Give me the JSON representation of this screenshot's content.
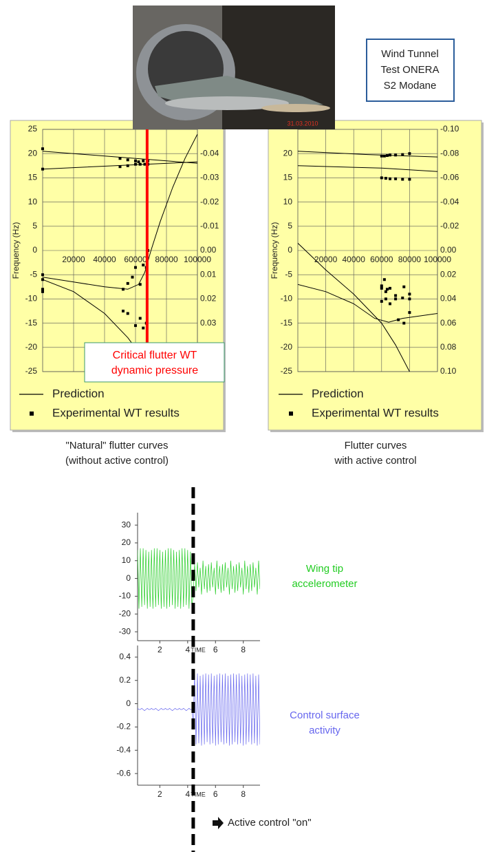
{
  "notes": {
    "box": [
      "Wind Tunnel",
      "Test ONERA",
      "S2 Modane"
    ],
    "photo_date": "31.03.2010",
    "active_control": {
      "x": 4.4,
      "label": "Active control \"on\""
    }
  },
  "chart_data": [
    {
      "type": "line",
      "ylabel": "Frequency (Hz)",
      "caption": [
        "\"Natural\" flutter curves",
        "(without active control)"
      ],
      "xlim": [
        0,
        100000
      ],
      "xticks": [
        20000,
        40000,
        60000,
        80000,
        100000
      ],
      "ylim": [
        -25,
        25
      ],
      "yticks": [
        25,
        20,
        15,
        10,
        5,
        0,
        -5,
        -10,
        -15,
        -20,
        -25
      ],
      "y2lim": [
        0.05,
        -0.05
      ],
      "y2ticks": [
        -0.04,
        -0.03,
        -0.02,
        -0.01,
        {
          "value": 0,
          "label": "0.00"
        },
        0.01,
        0.02,
        0.03
      ],
      "grid": true,
      "marker": {
        "x": 67500,
        "label": [
          "Critical flutter WT",
          "dynamic pressure"
        ],
        "color": "#ff0000"
      },
      "series": [
        {
          "name": "Prediction",
          "type": "line",
          "color": "#000000",
          "x": [
            0,
            100000,
            null,
            0,
            100000,
            null,
            0,
            20000,
            40000,
            55000,
            62000,
            66000,
            70000,
            76000,
            84000,
            92000,
            100000,
            null,
            0,
            20000,
            40000,
            55000,
            62000,
            65000
          ],
          "values": [
            20.5,
            18,
            null,
            16.8,
            18.3,
            null,
            -5.5,
            -6.5,
            -7.5,
            -8,
            -7,
            -4.5,
            0,
            6,
            13,
            19,
            24,
            null,
            -6,
            -8.5,
            -13,
            -18,
            -21,
            -25
          ]
        },
        {
          "name": "Experimental WT results",
          "type": "scatter",
          "color": "#000000",
          "x": [
            0,
            0,
            0,
            0,
            0,
            0,
            50000,
            55000,
            60000,
            62000,
            65000,
            68000,
            50000,
            55000,
            60000,
            63000,
            66000,
            68000,
            52000,
            55000,
            58000,
            60000,
            63000,
            65000,
            67000,
            68000,
            52000,
            55000,
            60000,
            63000,
            65000,
            67000
          ],
          "values": [
            21,
            16.8,
            -5,
            -6,
            -8,
            -8.5,
            19,
            18.7,
            18.5,
            18.3,
            18.5,
            18.5,
            17.3,
            17.5,
            17.8,
            17.8,
            17.8,
            17.8,
            -8,
            -6.8,
            -5.5,
            -3.5,
            -7,
            -3,
            -3.5,
            0,
            -12.5,
            -13,
            -15.5,
            -14,
            -16,
            -15
          ]
        }
      ]
    },
    {
      "type": "line",
      "ylabel": "Frequency (Hz)",
      "caption": [
        "Flutter curves",
        "with active control"
      ],
      "xlim": [
        0,
        100000
      ],
      "xticks": [
        20000,
        40000,
        60000,
        80000,
        100000
      ],
      "ylim": [
        -25,
        25
      ],
      "yticks": [
        20,
        15,
        10,
        5,
        0,
        -5,
        -10,
        -15,
        -20,
        -25
      ],
      "y2lim": [
        0.1,
        -0.1
      ],
      "y2ticks": [
        {
          "value": -0.1,
          "label": "-0.10"
        },
        -0.08,
        -0.06,
        -0.04,
        -0.02,
        {
          "value": 0,
          "label": "0.00"
        },
        0.02,
        0.04,
        0.06,
        0.08,
        {
          "value": 0.1,
          "label": "0.10"
        }
      ],
      "grid": true,
      "series": [
        {
          "name": "Prediction",
          "type": "line",
          "color": "#000000",
          "x": [
            0,
            50000,
            100000,
            null,
            0,
            60000,
            100000,
            null,
            0,
            20000,
            40000,
            60000,
            70000,
            80000,
            null,
            0,
            20000,
            40000,
            55000,
            65000,
            75000,
            100000
          ],
          "values": [
            20.5,
            19.8,
            19.3,
            null,
            17.5,
            17,
            16.3,
            null,
            1.5,
            -4,
            -9,
            -15,
            -19.5,
            -25,
            null,
            -7,
            -8.5,
            -11,
            -14,
            -14.8,
            -14,
            -13
          ]
        },
        {
          "name": "Experimental WT results",
          "type": "scatter",
          "color": "#000000",
          "x": [
            60000,
            62000,
            64000,
            66000,
            70000,
            75000,
            80000,
            60000,
            63000,
            66000,
            70000,
            75000,
            80000,
            60000,
            60000,
            62000,
            63000,
            64000,
            66000,
            66000,
            70000,
            70000,
            75000,
            76000,
            80000,
            80000,
            60000,
            63000,
            72000,
            76000,
            80000
          ],
          "values": [
            19.5,
            19.5,
            19.6,
            19.7,
            19.7,
            19.8,
            20,
            15,
            14.9,
            14.8,
            14.8,
            14.7,
            14.7,
            -7.3,
            -7.8,
            -6,
            -8.5,
            -8,
            -7.8,
            -11,
            -9.3,
            -10,
            -9.8,
            -7.5,
            -9,
            -10,
            -10.5,
            -10,
            -14.3,
            -15,
            -12.8
          ]
        }
      ]
    },
    {
      "type": "line",
      "xlabel": "TIME",
      "label": [
        "Wing tip",
        "accelerometer"
      ],
      "xlim": [
        0.4,
        9.2
      ],
      "xticks": [
        2,
        4,
        6,
        8
      ],
      "ylim": [
        -35,
        37
      ],
      "yticks": [
        30,
        20,
        10,
        0,
        -10,
        -20,
        -30
      ],
      "x": [
        0.4,
        0.5,
        0.6,
        0.7,
        0.8,
        0.9,
        1,
        1.1,
        1.2,
        1.3,
        1.4,
        1.5,
        1.6,
        1.7,
        1.8,
        1.9,
        2,
        2.1,
        2.2,
        2.3,
        2.4,
        2.5,
        2.6,
        2.7,
        2.8,
        2.9,
        3,
        3.1,
        3.2,
        3.3,
        3.4,
        3.5,
        3.6,
        3.7,
        3.8,
        3.9,
        4,
        4.1,
        4.2,
        4.3,
        4.4,
        4.5,
        4.6,
        4.7,
        4.8,
        4.9,
        5,
        5.1,
        5.2,
        5.3,
        5.4,
        5.5,
        5.6,
        5.7,
        5.8,
        5.9,
        6,
        6.1,
        6.2,
        6.3,
        6.4,
        6.5,
        6.6,
        6.7,
        6.8,
        6.9,
        7,
        7.1,
        7.2,
        7.3,
        7.4,
        7.5,
        7.6,
        7.7,
        7.8,
        7.9,
        8,
        8.1,
        8.2,
        8.3,
        8.4,
        8.5,
        8.6,
        8.7,
        8.8,
        8.9,
        9,
        9.1,
        9.2
      ],
      "series": [
        {
          "type": "line",
          "color": "#22cc22",
          "values": [
            16,
            -17,
            17,
            -16,
            17,
            -15,
            16,
            -17,
            15,
            -16,
            16,
            -17,
            17,
            -16,
            17,
            -15,
            16,
            -17,
            15,
            -16,
            16,
            -17,
            17,
            -16,
            17,
            -15,
            16,
            -17,
            15,
            -16,
            16,
            -17,
            17,
            -16,
            17,
            -15,
            16,
            -17,
            15,
            -16,
            -9,
            8,
            -7,
            9,
            -5,
            6,
            -9,
            10,
            -6,
            7,
            -8,
            8,
            -7,
            9,
            -5,
            6,
            -9,
            10,
            -6,
            7,
            -8,
            8,
            -7,
            9,
            -5,
            6,
            -9,
            10,
            -6,
            7,
            -8,
            8,
            -7,
            9,
            -5,
            6,
            -9,
            10,
            -6,
            7,
            -8,
            8,
            -7,
            9,
            -5,
            6,
            -9,
            10,
            -6
          ]
        }
      ]
    },
    {
      "type": "line",
      "xlabel": "TIME",
      "label": [
        "Control surface",
        "activity"
      ],
      "xlim": [
        0.4,
        9.2
      ],
      "xticks": [
        2,
        4,
        6,
        8
      ],
      "ylim": [
        -0.7,
        0.5
      ],
      "yticks": [
        0.4,
        0.2,
        0,
        -0.2,
        -0.4,
        -0.6
      ],
      "x": [
        0.4,
        0.5,
        0.6,
        0.7,
        0.8,
        0.9,
        1,
        1.1,
        1.2,
        1.3,
        1.4,
        1.5,
        1.6,
        1.7,
        1.8,
        1.9,
        2,
        2.1,
        2.2,
        2.3,
        2.4,
        2.5,
        2.6,
        2.7,
        2.8,
        2.9,
        3,
        3.1,
        3.2,
        3.3,
        3.4,
        3.5,
        3.6,
        3.7,
        3.8,
        3.9,
        4,
        4.1,
        4.2,
        4.3,
        4.4,
        4.5,
        4.6,
        4.7,
        4.8,
        4.9,
        5,
        5.1,
        5.2,
        5.3,
        5.4,
        5.5,
        5.6,
        5.7,
        5.8,
        5.9,
        6,
        6.1,
        6.2,
        6.3,
        6.4,
        6.5,
        6.6,
        6.7,
        6.8,
        6.9,
        7,
        7.1,
        7.2,
        7.3,
        7.4,
        7.5,
        7.6,
        7.7,
        7.8,
        7.9,
        8,
        8.1,
        8.2,
        8.3,
        8.4,
        8.5,
        8.6,
        8.7,
        8.8,
        8.9,
        9,
        9.1,
        9.2
      ],
      "series": [
        {
          "type": "line",
          "color": "#6666ee",
          "values": [
            -0.04,
            -0.05,
            -0.05,
            -0.04,
            -0.05,
            -0.06,
            -0.05,
            -0.04,
            -0.05,
            -0.05,
            -0.04,
            -0.05,
            -0.05,
            -0.04,
            -0.05,
            -0.06,
            -0.05,
            -0.04,
            -0.05,
            -0.05,
            -0.04,
            -0.05,
            -0.05,
            -0.04,
            -0.05,
            -0.06,
            -0.05,
            -0.04,
            -0.05,
            -0.05,
            -0.04,
            -0.05,
            -0.05,
            -0.04,
            -0.05,
            -0.06,
            -0.05,
            -0.04,
            -0.05,
            -0.05,
            -0.15,
            0.25,
            -0.35,
            0.26,
            -0.34,
            0.24,
            -0.36,
            0.25,
            -0.35,
            0.26,
            -0.33,
            0.25,
            -0.35,
            0.26,
            -0.34,
            0.24,
            -0.36,
            0.25,
            -0.35,
            0.26,
            -0.33,
            0.25,
            -0.35,
            0.26,
            -0.34,
            0.24,
            -0.36,
            0.25,
            -0.35,
            0.26,
            -0.33,
            0.25,
            -0.35,
            0.26,
            -0.34,
            0.24,
            -0.36,
            0.25,
            -0.35,
            0.26,
            -0.33,
            0.25,
            -0.35,
            0.26,
            -0.34,
            0.24,
            -0.36,
            0.25,
            -0.35
          ]
        }
      ]
    }
  ]
}
